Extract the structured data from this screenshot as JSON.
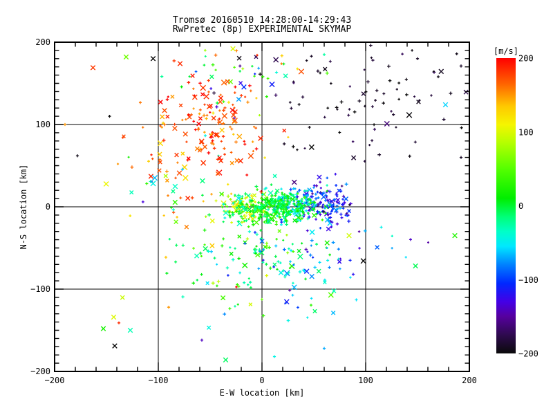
{
  "title": {
    "line1": "Tromsø 20160510 14:28:00-14:29:43",
    "line2": "RwPretec (8p) EXPERIMENTAL SKYMAP"
  },
  "colors": {
    "background": "#ffffff",
    "axis": "#000000",
    "text": "#000000"
  },
  "chart_data": {
    "type": "scatter",
    "title": "Tromsø 20160510 14:28:00-14:29:43",
    "subtitle": "RwPretec (8p) EXPERIMENTAL SKYMAP",
    "xlabel": "E-W location [km]",
    "ylabel": "N-S location [km]",
    "xlim": [
      -200,
      200
    ],
    "ylim": [
      -200,
      200
    ],
    "xticks": [
      -200,
      -100,
      0,
      100,
      200
    ],
    "yticks": [
      -200,
      -100,
      0,
      100,
      200
    ],
    "x_minor_step": 20,
    "y_minor_step": 10,
    "gridlines_x": [
      -100,
      0,
      100
    ],
    "gridlines_y": [
      -100,
      0,
      100
    ],
    "grid": true,
    "legend_position": "right-colorbar",
    "colorbar": {
      "label": "[m/s]",
      "min": -200,
      "max": 200,
      "ticks": [
        200,
        100,
        0,
        -100,
        -200
      ],
      "colormap_stops": [
        [
          -200,
          "#0a0a0a"
        ],
        [
          -175,
          "#2e0a4e"
        ],
        [
          -150,
          "#56009e"
        ],
        [
          -130,
          "#4400e6"
        ],
        [
          -105,
          "#0028ff"
        ],
        [
          -80,
          "#0080ff"
        ],
        [
          -55,
          "#00e8ff"
        ],
        [
          -35,
          "#00ffc8"
        ],
        [
          -15,
          "#00ff78"
        ],
        [
          10,
          "#00ee00"
        ],
        [
          50,
          "#55ff00"
        ],
        [
          85,
          "#b4ff00"
        ],
        [
          110,
          "#f5f500"
        ],
        [
          135,
          "#ffc800"
        ],
        [
          165,
          "#ff6400"
        ],
        [
          200,
          "#ff0000"
        ]
      ]
    },
    "marker_types": [
      "plus",
      "cross"
    ],
    "render_seed": 20160510,
    "clusters": [
      {
        "name": "black-ne",
        "count": 85,
        "x": [
          115,
          45
        ],
        "y": [
          125,
          40
        ],
        "v": [
          -192,
          10
        ],
        "vdist": "normal",
        "cross_frac": 0.18
      },
      {
        "name": "top-center-mix",
        "count": 55,
        "x": [
          -5,
          38
        ],
        "y": [
          160,
          25
        ],
        "v": [
          -200,
          200
        ],
        "vdist": "uniform",
        "cross_frac": 0.3
      },
      {
        "name": "west-red",
        "count": 45,
        "x": [
          -70,
          30
        ],
        "y": [
          35,
          45
        ],
        "v": [
          165,
          30
        ],
        "vdist": "normal",
        "cross_frac": 0.4
      },
      {
        "name": "west-green",
        "count": 30,
        "x": [
          -80,
          35
        ],
        "y": [
          20,
          50
        ],
        "v": [
          -5,
          60
        ],
        "vdist": "normal",
        "cross_frac": 0.5
      },
      {
        "name": "south-green",
        "count": 90,
        "x": [
          -10,
          35
        ],
        "y": [
          -60,
          33
        ],
        "v": [
          10,
          35
        ],
        "vdist": "normal",
        "cross_frac": 0.2
      },
      {
        "name": "south-cyan",
        "count": 85,
        "x": [
          30,
          35
        ],
        "y": [
          -65,
          35
        ],
        "v": [
          -60,
          35
        ],
        "vdist": "normal",
        "cross_frac": 0.15
      },
      {
        "name": "se-sparse",
        "count": 12,
        "x": [
          90,
          45
        ],
        "y": [
          -70,
          40
        ],
        "v": [
          -80,
          60
        ],
        "vdist": "normal",
        "cross_frac": 0.2
      },
      {
        "name": "red-nw",
        "count": 130,
        "x": [
          -55,
          27
        ],
        "y": [
          100,
          28
        ],
        "v": [
          172,
          22
        ],
        "vdist": "normal",
        "cross_frac": 0.45
      },
      {
        "name": "blue-east",
        "count": 150,
        "x": [
          58,
          15
        ],
        "y": [
          6,
          13
        ],
        "v": [
          -110,
          28
        ],
        "vdist": "normal",
        "cross_frac": 0.12
      },
      {
        "name": "cyan-east",
        "count": 80,
        "x": [
          33,
          10
        ],
        "y": [
          2,
          10
        ],
        "v": [
          -50,
          18
        ],
        "vdist": "normal",
        "cross_frac": 0.1
      },
      {
        "name": "yellow-west",
        "count": 70,
        "x": [
          -14,
          11
        ],
        "y": [
          -3,
          9
        ],
        "v": [
          95,
          22
        ],
        "vdist": "normal",
        "cross_frac": 0.3
      },
      {
        "name": "core-green",
        "count": 340,
        "x": [
          12,
          20
        ],
        "y": [
          0,
          9
        ],
        "v": [
          0,
          28
        ],
        "vdist": "normal",
        "cross_frac": 0.12
      }
    ],
    "outlier_points": [
      [
        -163,
        169,
        180,
        "cross"
      ],
      [
        -131,
        182,
        60,
        "cross"
      ],
      [
        -105,
        180,
        -200,
        "cross"
      ],
      [
        -79,
        174,
        185,
        "cross"
      ],
      [
        -147,
        110,
        -200,
        "plus"
      ],
      [
        -178,
        62,
        -195,
        "plus"
      ],
      [
        -190,
        100,
        150,
        "plus"
      ],
      [
        -143,
        -134,
        100,
        "cross"
      ],
      [
        -153,
        -148,
        20,
        "cross"
      ],
      [
        -127,
        -150,
        -30,
        "cross"
      ],
      [
        -142,
        -169,
        -200,
        "cross"
      ],
      [
        -138,
        -141,
        185,
        "plus"
      ],
      [
        -90,
        -122,
        150,
        "plus"
      ],
      [
        -58,
        -162,
        -140,
        "plus"
      ],
      [
        -35,
        -186,
        -10,
        "cross"
      ],
      [
        12,
        -182,
        -45,
        "plus"
      ],
      [
        60,
        -172,
        -70,
        "plus"
      ],
      [
        84,
        -35,
        95,
        "cross"
      ],
      [
        186,
        -35,
        25,
        "cross"
      ],
      [
        91,
        -113,
        -55,
        "plus"
      ],
      [
        85,
        -65,
        -110,
        "plus"
      ],
      [
        88,
        -82,
        -120,
        "plus"
      ],
      [
        177,
        124,
        -60,
        "cross"
      ],
      [
        170,
        158,
        -195,
        "plus"
      ],
      [
        150,
        180,
        -190,
        "plus"
      ],
      [
        192,
        60,
        -190,
        "plus"
      ],
      [
        60,
        185,
        -25,
        "plus"
      ],
      [
        -28,
        192,
        100,
        "cross"
      ]
    ]
  }
}
